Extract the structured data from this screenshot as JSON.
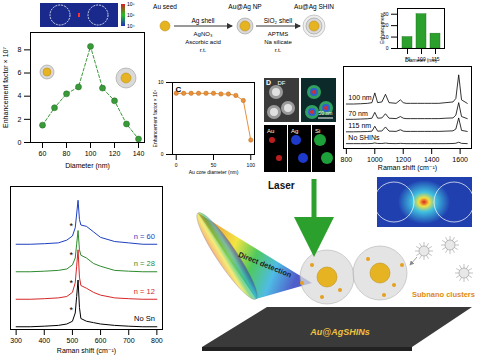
{
  "chart_data": [
    {
      "type": "scatter",
      "line_style": "dashed",
      "marker": "circle",
      "x": [
        60,
        70,
        80,
        90,
        100,
        110,
        120,
        130,
        140
      ],
      "values": [
        1.5,
        3.0,
        4.2,
        4.8,
        8.3,
        4.7,
        3.6,
        1.6,
        0.3
      ],
      "color": "#3a9a3a",
      "xlim": [
        50,
        145
      ],
      "xticks": [
        60,
        80,
        100,
        120,
        140
      ],
      "ylim": [
        0,
        9.5
      ],
      "yticks": [
        0,
        2,
        4,
        6,
        8
      ],
      "x_label": "Diameter (nm)",
      "y_label": "Enhancement factor × 10⁷",
      "color_bar": {
        "range": [
          10000,
          100000000
        ],
        "ticks": [
          {
            "value": 100000000,
            "label": "10⁸"
          },
          {
            "value": 1000000,
            "label": "10⁶"
          },
          {
            "value": 10000,
            "label": "10⁴"
          }
        ]
      }
    },
    {
      "type": "line",
      "marker": "circle",
      "panel_label": "C",
      "x": [
        0,
        10,
        20,
        30,
        40,
        50,
        60,
        70,
        80,
        90,
        100
      ],
      "values": [
        8.5,
        8.5,
        8.5,
        8.5,
        8.5,
        8.5,
        8.4,
        8.4,
        8.2,
        7.5,
        2.0
      ],
      "color": "#e8913a",
      "xlim": [
        -5,
        105
      ],
      "xticks": [
        0,
        50,
        100
      ],
      "ylim": [
        0,
        10
      ],
      "yticks": [
        0,
        10
      ],
      "x_label": "Au core diameter (nm)",
      "y_label": "Enhancement factor × 10⁷"
    },
    {
      "type": "line",
      "tick_labels": "x",
      "x": [
        800,
        850,
        900,
        950,
        980,
        1000,
        1020,
        1050,
        1075,
        1100,
        1150,
        1180,
        1200,
        1220,
        1250,
        1300,
        1350,
        1400,
        1450,
        1500,
        1550,
        1570,
        1590,
        1610,
        1650
      ],
      "series": [
        {
          "name": "100 nm",
          "color": "#000000",
          "values": [
            2.9,
            2.9,
            2.92,
            2.95,
            3.0,
            3.7,
            3.0,
            3.05,
            3.6,
            3.0,
            2.95,
            3.2,
            3.0,
            2.95,
            2.95,
            2.95,
            2.95,
            2.95,
            2.95,
            3.0,
            3.05,
            3.3,
            5.0,
            3.2,
            2.95
          ]
        },
        {
          "name": "70 nm",
          "color": "#000000",
          "values": [
            1.8,
            1.8,
            1.82,
            1.84,
            1.88,
            2.3,
            1.88,
            1.9,
            2.2,
            1.88,
            1.85,
            2.0,
            1.88,
            1.85,
            1.85,
            1.85,
            1.85,
            1.85,
            1.85,
            1.88,
            1.9,
            2.1,
            3.0,
            2.0,
            1.85
          ]
        },
        {
          "name": "115 nm",
          "color": "#000000",
          "values": [
            0.9,
            0.9,
            0.91,
            0.92,
            0.95,
            1.3,
            0.95,
            0.96,
            1.25,
            0.95,
            0.93,
            1.05,
            0.95,
            0.93,
            0.93,
            0.93,
            0.93,
            0.93,
            0.93,
            0.95,
            0.97,
            1.1,
            1.9,
            1.0,
            0.93
          ]
        },
        {
          "name": "No SHINs",
          "color": "#000000",
          "values": [
            0.05,
            0.05,
            0.05,
            0.05,
            0.06,
            0.1,
            0.06,
            0.06,
            0.09,
            0.06,
            0.05,
            0.07,
            0.06,
            0.05,
            0.05,
            0.05,
            0.05,
            0.05,
            0.05,
            0.05,
            0.06,
            0.08,
            0.15,
            0.07,
            0.05
          ]
        }
      ],
      "xlim": [
        780,
        1680
      ],
      "xticks": [
        800,
        1000,
        1200,
        1400,
        1600
      ],
      "ylim": [
        -0.3,
        5.6
      ],
      "x_label": "Raman shift (cm⁻¹)"
    },
    {
      "type": "bar",
      "categories": [
        "70",
        "100",
        "115"
      ],
      "values": [
        10,
        30,
        13
      ],
      "color": "#2ca02c",
      "ylim": [
        0,
        35
      ],
      "yticks": [
        0,
        10,
        20,
        30
      ],
      "x_label": "Diameter (nm)",
      "y_label": "Enhancement"
    },
    {
      "type": "line",
      "tick_labels": "x",
      "x": [
        300,
        350,
        400,
        450,
        480,
        500,
        510,
        515,
        520,
        525,
        530,
        550,
        575,
        600,
        650,
        700,
        750,
        800
      ],
      "series": [
        {
          "name": "n = 60",
          "color": "#1f3fbf",
          "values": [
            3.1,
            3.1,
            3.12,
            3.15,
            3.25,
            3.4,
            3.7,
            4.2,
            4.7,
            4.0,
            3.8,
            3.75,
            3.55,
            3.35,
            3.2,
            3.15,
            3.1,
            3.1
          ]
        },
        {
          "name": "n = 28",
          "color": "#2e8b2e",
          "values": [
            2.1,
            2.1,
            2.12,
            2.15,
            2.2,
            2.35,
            2.6,
            3.1,
            3.6,
            2.9,
            2.7,
            2.6,
            2.4,
            2.3,
            2.15,
            2.12,
            2.1,
            2.1
          ]
        },
        {
          "name": "n = 12",
          "color": "#d62728",
          "values": [
            1.1,
            1.1,
            1.12,
            1.15,
            1.2,
            1.35,
            1.7,
            2.3,
            2.9,
            1.9,
            1.6,
            1.5,
            1.35,
            1.25,
            1.15,
            1.12,
            1.1,
            1.1
          ]
        },
        {
          "name": "No Sn",
          "color": "#000000",
          "values": [
            0.1,
            0.1,
            0.12,
            0.15,
            0.2,
            0.3,
            0.6,
            1.2,
            1.8,
            0.8,
            0.4,
            0.3,
            0.25,
            0.2,
            0.15,
            0.12,
            0.1,
            0.1
          ]
        }
      ],
      "annotations": [
        {
          "text": "*",
          "x": 496,
          "y": 3.75
        },
        {
          "text": "*",
          "x": 496,
          "y": 2.7
        },
        {
          "text": "*",
          "x": 496,
          "y": 1.7
        },
        {
          "text": "*",
          "x": 496,
          "y": 0.7
        }
      ],
      "xlim": [
        280,
        820
      ],
      "xticks": [
        300,
        400,
        500,
        600,
        700,
        800
      ],
      "ylim": [
        0,
        5.2
      ],
      "x_label": "Raman shift (cm⁻¹)"
    }
  ],
  "scheme": {
    "stages": [
      "Au seed",
      "Au@Ag NP",
      "Au@Ag SHIN"
    ],
    "steps": [
      {
        "title": "Ag shell",
        "reagents": [
          "AgNO₃",
          "Ascorbic acid",
          "r.t."
        ]
      },
      {
        "title": "SiO₂ shell",
        "reagents": [
          "APTMS",
          "Na silicate",
          "r.t."
        ]
      }
    ]
  },
  "eds": {
    "panel_label": "D",
    "images": [
      "DF",
      "Au",
      "Ag",
      "Si"
    ],
    "scale_bar": "50 nm"
  },
  "illustration": {
    "laser": "Laser",
    "detection": "Direct detection",
    "substrate": "Au@AgSHINs",
    "clusters": "Subnano clusters"
  }
}
